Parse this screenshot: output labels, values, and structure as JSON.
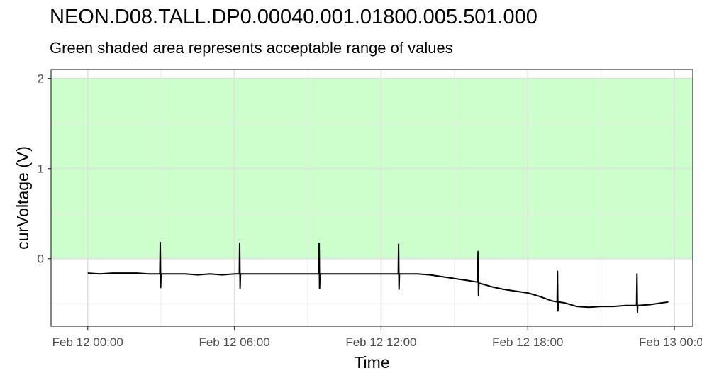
{
  "chart_data": {
    "type": "line",
    "title": "NEON.D08.TALL.DP0.00040.001.01800.005.501.000",
    "subtitle": "Green shaded area represents acceptable range of values",
    "xlabel": "Time",
    "ylabel": "curVoltage (V)",
    "xlim": [
      "2024-02-11T22:30",
      "2024-02-13T00:45"
    ],
    "ylim": [
      -0.75,
      2.1
    ],
    "x_ticks": [
      {
        "value": "2024-02-12T00:00",
        "label": "Feb 12 00:00"
      },
      {
        "value": "2024-02-12T06:00",
        "label": "Feb 12 06:00"
      },
      {
        "value": "2024-02-12T12:00",
        "label": "Feb 12 12:00"
      },
      {
        "value": "2024-02-12T18:00",
        "label": "Feb 12 18:00"
      },
      {
        "value": "2024-02-13T00:00",
        "label": "Feb 13 00:00"
      }
    ],
    "y_ticks": [
      {
        "value": 0,
        "label": "0"
      },
      {
        "value": 1,
        "label": "1"
      },
      {
        "value": 2,
        "label": "2"
      }
    ],
    "acceptable_range": {
      "ymin": 0,
      "ymax": 2,
      "color": "#ccffcc"
    },
    "grid": true,
    "line_color": "#000000",
    "series": [
      {
        "x": [
          "2024-02-12T00:00",
          "2024-02-12T00:30",
          "2024-02-12T01:00",
          "2024-02-12T01:30",
          "2024-02-12T02:00",
          "2024-02-12T02:30",
          "2024-02-12T02:57",
          "2024-02-12T02:58",
          "2024-02-12T02:59",
          "2024-02-12T03:00",
          "2024-02-12T03:30",
          "2024-02-12T04:00",
          "2024-02-12T04:30",
          "2024-02-12T05:00",
          "2024-02-12T05:30",
          "2024-02-12T06:00",
          "2024-02-12T06:12",
          "2024-02-12T06:13",
          "2024-02-12T06:14",
          "2024-02-12T06:15",
          "2024-02-12T07:00",
          "2024-02-12T08:00",
          "2024-02-12T09:00",
          "2024-02-12T09:27",
          "2024-02-12T09:28",
          "2024-02-12T09:29",
          "2024-02-12T09:30",
          "2024-02-12T10:00",
          "2024-02-12T11:00",
          "2024-02-12T12:00",
          "2024-02-12T12:42",
          "2024-02-12T12:43",
          "2024-02-12T12:44",
          "2024-02-12T12:45",
          "2024-02-12T13:30",
          "2024-02-12T14:00",
          "2024-02-12T14:30",
          "2024-02-12T15:00",
          "2024-02-12T15:30",
          "2024-02-12T15:57",
          "2024-02-12T15:58",
          "2024-02-12T15:59",
          "2024-02-12T16:00",
          "2024-02-12T16:30",
          "2024-02-12T17:00",
          "2024-02-12T17:30",
          "2024-02-12T18:00",
          "2024-02-12T18:30",
          "2024-02-12T19:00",
          "2024-02-12T19:12",
          "2024-02-12T19:13",
          "2024-02-12T19:14",
          "2024-02-12T19:15",
          "2024-02-12T19:30",
          "2024-02-12T20:00",
          "2024-02-12T20:30",
          "2024-02-12T21:00",
          "2024-02-12T21:30",
          "2024-02-12T22:00",
          "2024-02-12T22:27",
          "2024-02-12T22:28",
          "2024-02-12T22:29",
          "2024-02-12T22:30",
          "2024-02-12T23:00",
          "2024-02-12T23:30",
          "2024-02-12T23:45"
        ],
        "y": [
          -0.16,
          -0.17,
          -0.16,
          -0.16,
          -0.16,
          -0.17,
          -0.17,
          0.18,
          -0.32,
          -0.17,
          -0.17,
          -0.17,
          -0.18,
          -0.17,
          -0.18,
          -0.17,
          -0.17,
          0.17,
          -0.33,
          -0.17,
          -0.17,
          -0.17,
          -0.17,
          -0.17,
          0.17,
          -0.33,
          -0.17,
          -0.17,
          -0.17,
          -0.17,
          -0.17,
          0.16,
          -0.34,
          -0.17,
          -0.17,
          -0.18,
          -0.2,
          -0.22,
          -0.24,
          -0.26,
          0.08,
          -0.41,
          -0.27,
          -0.31,
          -0.34,
          -0.36,
          -0.38,
          -0.42,
          -0.47,
          -0.48,
          -0.14,
          -0.58,
          -0.48,
          -0.49,
          -0.53,
          -0.54,
          -0.53,
          -0.53,
          -0.52,
          -0.52,
          -0.17,
          -0.6,
          -0.52,
          -0.51,
          -0.49,
          -0.48
        ]
      }
    ]
  }
}
